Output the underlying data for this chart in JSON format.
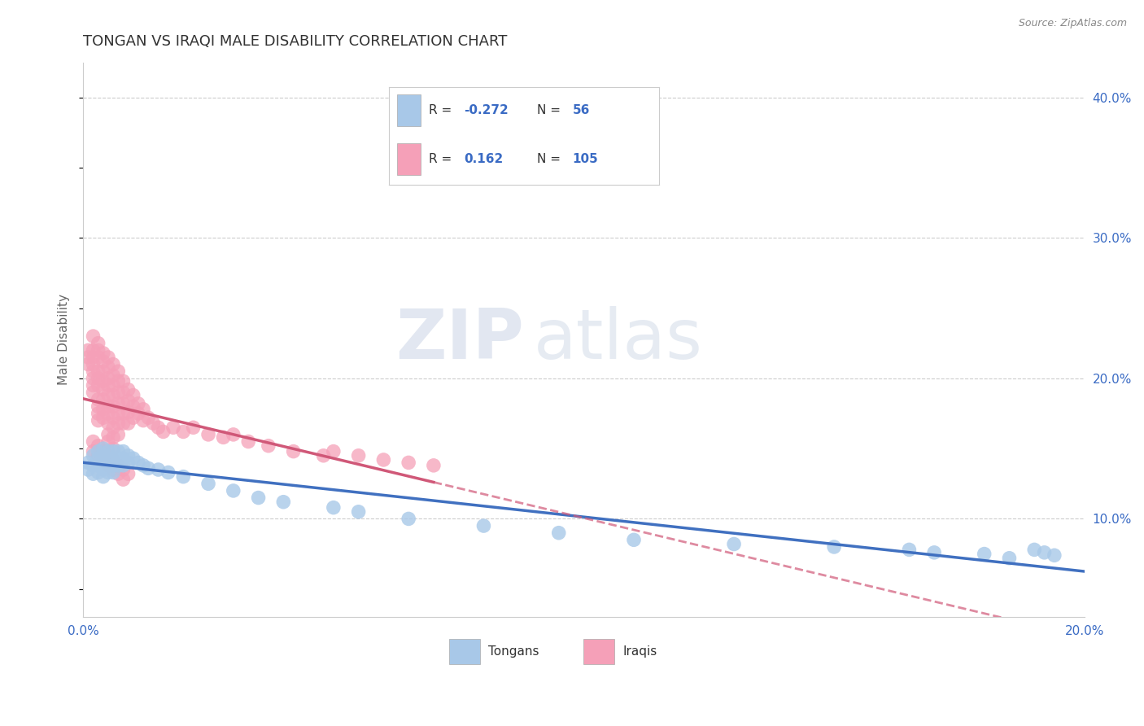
{
  "title": "TONGAN VS IRAQI MALE DISABILITY CORRELATION CHART",
  "source_text": "Source: ZipAtlas.com",
  "ylabel": "Male Disability",
  "xmin": 0.0,
  "xmax": 0.2,
  "ymin": 0.03,
  "ymax": 0.425,
  "yticks_right": [
    0.1,
    0.2,
    0.3,
    0.4
  ],
  "ytick_labels_right": [
    "10.0%",
    "20.0%",
    "30.0%",
    "40.0%"
  ],
  "xticks": [
    0.0,
    0.02,
    0.04,
    0.06,
    0.08,
    0.1,
    0.12,
    0.14,
    0.16,
    0.18,
    0.2
  ],
  "tongan_color": "#a8c8e8",
  "iraqi_color": "#f5a0b8",
  "tongan_line_color": "#4070c0",
  "iraqi_line_color": "#d05878",
  "legend_r_tongan": "-0.272",
  "legend_n_tongan": "56",
  "legend_r_iraqi": "0.162",
  "legend_n_iraqi": "105",
  "watermark_zip": "ZIP",
  "watermark_atlas": "atlas",
  "tongan_x": [
    0.001,
    0.001,
    0.002,
    0.002,
    0.002,
    0.003,
    0.003,
    0.003,
    0.003,
    0.004,
    0.004,
    0.004,
    0.004,
    0.004,
    0.005,
    0.005,
    0.005,
    0.005,
    0.006,
    0.006,
    0.006,
    0.006,
    0.007,
    0.007,
    0.007,
    0.008,
    0.008,
    0.008,
    0.009,
    0.009,
    0.01,
    0.011,
    0.012,
    0.013,
    0.015,
    0.017,
    0.02,
    0.025,
    0.03,
    0.035,
    0.04,
    0.05,
    0.055,
    0.065,
    0.08,
    0.095,
    0.11,
    0.13,
    0.15,
    0.165,
    0.17,
    0.18,
    0.185,
    0.19,
    0.192,
    0.194
  ],
  "tongan_y": [
    0.14,
    0.135,
    0.145,
    0.138,
    0.132,
    0.148,
    0.143,
    0.138,
    0.133,
    0.15,
    0.145,
    0.14,
    0.135,
    0.13,
    0.148,
    0.143,
    0.138,
    0.133,
    0.148,
    0.143,
    0.138,
    0.133,
    0.148,
    0.143,
    0.138,
    0.148,
    0.143,
    0.138,
    0.145,
    0.14,
    0.143,
    0.14,
    0.138,
    0.136,
    0.135,
    0.133,
    0.13,
    0.125,
    0.12,
    0.115,
    0.112,
    0.108,
    0.105,
    0.1,
    0.095,
    0.09,
    0.085,
    0.082,
    0.08,
    0.078,
    0.076,
    0.075,
    0.072,
    0.078,
    0.076,
    0.074
  ],
  "iraqi_x": [
    0.001,
    0.001,
    0.001,
    0.002,
    0.002,
    0.002,
    0.002,
    0.002,
    0.002,
    0.002,
    0.002,
    0.003,
    0.003,
    0.003,
    0.003,
    0.003,
    0.003,
    0.003,
    0.003,
    0.003,
    0.003,
    0.004,
    0.004,
    0.004,
    0.004,
    0.004,
    0.004,
    0.004,
    0.004,
    0.005,
    0.005,
    0.005,
    0.005,
    0.005,
    0.005,
    0.005,
    0.005,
    0.005,
    0.005,
    0.006,
    0.006,
    0.006,
    0.006,
    0.006,
    0.006,
    0.006,
    0.006,
    0.006,
    0.007,
    0.007,
    0.007,
    0.007,
    0.007,
    0.007,
    0.007,
    0.008,
    0.008,
    0.008,
    0.008,
    0.008,
    0.009,
    0.009,
    0.009,
    0.009,
    0.01,
    0.01,
    0.01,
    0.011,
    0.011,
    0.012,
    0.012,
    0.013,
    0.014,
    0.015,
    0.016,
    0.018,
    0.02,
    0.022,
    0.025,
    0.028,
    0.03,
    0.033,
    0.037,
    0.042,
    0.048,
    0.05,
    0.055,
    0.06,
    0.065,
    0.07,
    0.002,
    0.002,
    0.003,
    0.003,
    0.004,
    0.004,
    0.005,
    0.005,
    0.006,
    0.006,
    0.007,
    0.007,
    0.008,
    0.008,
    0.009
  ],
  "iraqi_y": [
    0.22,
    0.215,
    0.21,
    0.23,
    0.22,
    0.215,
    0.21,
    0.205,
    0.2,
    0.195,
    0.19,
    0.225,
    0.22,
    0.215,
    0.205,
    0.2,
    0.195,
    0.185,
    0.18,
    0.175,
    0.17,
    0.218,
    0.212,
    0.205,
    0.198,
    0.192,
    0.185,
    0.178,
    0.172,
    0.215,
    0.208,
    0.2,
    0.195,
    0.188,
    0.18,
    0.175,
    0.168,
    0.16,
    0.155,
    0.21,
    0.202,
    0.195,
    0.188,
    0.18,
    0.172,
    0.165,
    0.158,
    0.15,
    0.205,
    0.198,
    0.19,
    0.182,
    0.175,
    0.168,
    0.16,
    0.198,
    0.19,
    0.182,
    0.175,
    0.168,
    0.192,
    0.184,
    0.176,
    0.168,
    0.188,
    0.18,
    0.172,
    0.182,
    0.175,
    0.178,
    0.17,
    0.172,
    0.168,
    0.165,
    0.162,
    0.165,
    0.162,
    0.165,
    0.16,
    0.158,
    0.16,
    0.155,
    0.152,
    0.148,
    0.145,
    0.148,
    0.145,
    0.142,
    0.14,
    0.138,
    0.155,
    0.148,
    0.152,
    0.145,
    0.148,
    0.142,
    0.145,
    0.138,
    0.142,
    0.135,
    0.138,
    0.132,
    0.135,
    0.128,
    0.132
  ]
}
